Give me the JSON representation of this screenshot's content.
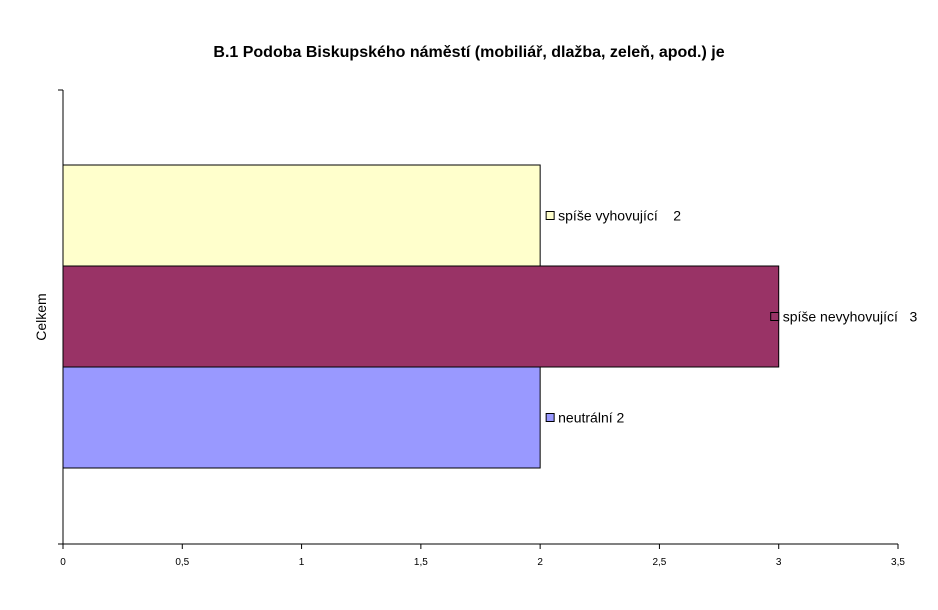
{
  "chart_data": {
    "type": "bar",
    "orientation": "horizontal",
    "title": "B.1 Podoba Biskupského náměstí (mobiliář, dlažba, zeleň, apod.) je",
    "categories": [
      "Celkem"
    ],
    "series": [
      {
        "name": "spíše vyhovující",
        "values": [
          2
        ],
        "color": "#FFFFCC",
        "label": "spíše vyhovující    2"
      },
      {
        "name": "spíše nevyhovující",
        "values": [
          3
        ],
        "color": "#993366",
        "label": "spíše nevyhovující   3"
      },
      {
        "name": "neutrální",
        "values": [
          2
        ],
        "color": "#9999FF",
        "label": "neutrální 2"
      }
    ],
    "xlim": [
      0,
      3.5
    ],
    "x_ticks": [
      "0",
      "0,5",
      "1",
      "1,5",
      "2",
      "2,5",
      "3",
      "3,5"
    ],
    "x_tick_values": [
      0,
      0.5,
      1,
      1.5,
      2,
      2.5,
      3,
      3.5
    ],
    "xlabel": "",
    "ylabel": "",
    "grid": false,
    "legend": "none"
  }
}
